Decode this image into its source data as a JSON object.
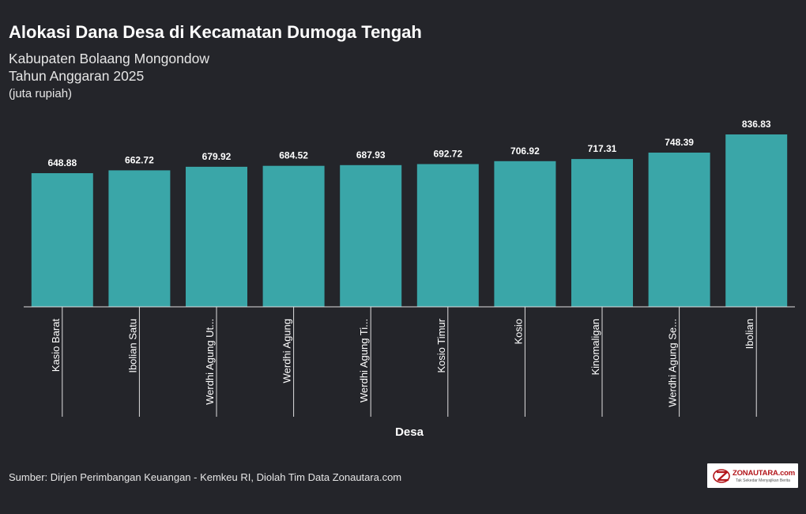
{
  "header": {
    "title": "Alokasi Dana Desa di Kecamatan Dumoga Tengah",
    "subtitle_line1": "Kabupaten Bolaang Mongondow",
    "subtitle_line2": "Tahun Anggaran 2025",
    "unit": "(juta rupiah)"
  },
  "footer": {
    "source": "Sumber: Dirjen Perimbangan Keuangan - Kemkeu RI, Diolah Tim Data Zonautara.com",
    "logo_name": "ZONAUTARA.com",
    "logo_tagline": "Tak Sekedar Menyajikan Berita"
  },
  "colors": {
    "background": "#24252a",
    "bar": "#3aa6a8",
    "text": "#ffffff",
    "logo_red": "#b3161b"
  },
  "chart_data": {
    "type": "bar",
    "xlabel": "Desa",
    "ylabel": "",
    "ylim": [
      0,
      836.83
    ],
    "grid": false,
    "categories": [
      "Kasio Barat",
      "Ibolian Satu",
      "Werdhi Agung Ut...",
      "Werdhi Agung",
      "Werdhi Agung Ti...",
      "Kosio Timur",
      "Kosio",
      "Kinomaligan",
      "Werdhi Agung Se...",
      "Ibolian"
    ],
    "values": [
      648.88,
      662.72,
      679.92,
      684.52,
      687.93,
      692.72,
      706.92,
      717.31,
      748.39,
      836.83
    ],
    "value_labels": [
      "648.88",
      "662.72",
      "679.92",
      "684.52",
      "687.93",
      "692.72",
      "706.92",
      "717.31",
      "748.39",
      "836.83"
    ]
  }
}
